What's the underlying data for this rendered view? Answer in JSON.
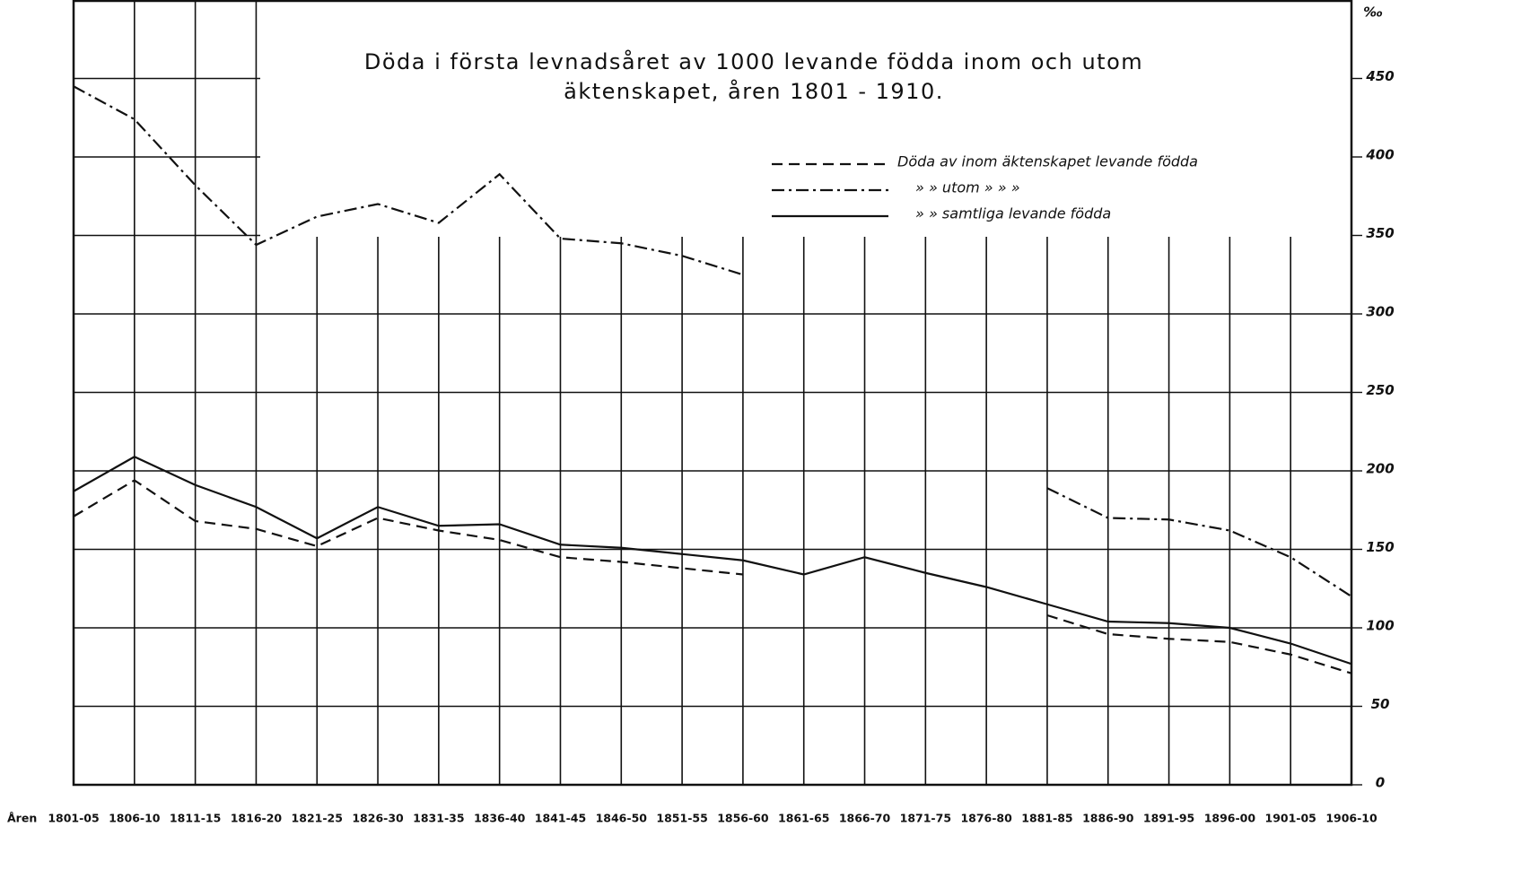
{
  "chart_data": {
    "type": "line",
    "title": "Döda i första levnadsåret av 1000 levande födda inom och utom",
    "subtitle": "äktenskapet, åren 1801 - 1910.",
    "x_label": "Åren",
    "y_label": "‰",
    "categories": [
      "1801-05",
      "1806-10",
      "1811-15",
      "1816-20",
      "1821-25",
      "1826-30",
      "1831-35",
      "1836-40",
      "1841-45",
      "1846-50",
      "1851-55",
      "1856-60",
      "1861-65",
      "1866-70",
      "1871-75",
      "1876-80",
      "1881-85",
      "1886-90",
      "1891-95",
      "1896-00",
      "1901-05",
      "1906-10"
    ],
    "series": [
      {
        "name": "Döda av inom äktenskapet levande födda",
        "color": "#111111",
        "dash": "dashed",
        "values": [
          171,
          194,
          168,
          163,
          152,
          170,
          162,
          156,
          145,
          142,
          138,
          134,
          null,
          null,
          null,
          null,
          108,
          96,
          93,
          91,
          83,
          71
        ]
      },
      {
        "name": "» » utom » » »",
        "color": "#111111",
        "dash": "dashdot",
        "values": [
          445,
          424,
          382,
          344,
          362,
          370,
          358,
          389,
          348,
          345,
          337,
          325,
          null,
          null,
          null,
          null,
          189,
          170,
          169,
          162,
          145,
          120
        ]
      },
      {
        "name": "» » samtliga levande födda",
        "color": "#111111",
        "dash": "solid",
        "values": [
          187,
          209,
          191,
          177,
          157,
          177,
          165,
          166,
          153,
          151,
          147,
          143,
          134,
          145,
          135,
          126,
          115,
          104,
          103,
          100,
          90,
          77
        ]
      }
    ],
    "ylim": [
      0,
      500
    ],
    "yticks": [
      0,
      50,
      100,
      150,
      200,
      250,
      300,
      350,
      400,
      450
    ],
    "grid": true
  }
}
